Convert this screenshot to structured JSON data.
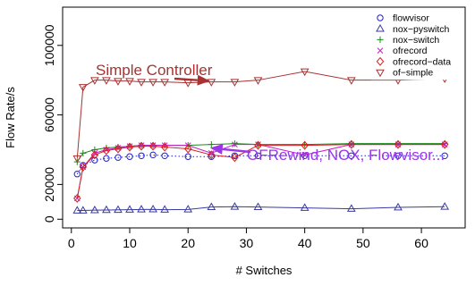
{
  "chart_data": {
    "type": "line",
    "xlabel": "# Switches",
    "ylabel": "Flow Rate/s",
    "xlim": [
      -1.5,
      67.5
    ],
    "ylim": [
      -5000,
      122000
    ],
    "x_ticks": [
      0,
      10,
      20,
      30,
      40,
      50,
      60
    ],
    "y_ticks": [
      0,
      20000,
      60000,
      100000
    ],
    "grid": false,
    "legend_position": "top-right",
    "series": [
      {
        "name": "flowvisor",
        "marker": "circle",
        "line": "dotted",
        "color": "#1f1fd6",
        "x": [
          1,
          2,
          4,
          6,
          8,
          10,
          12,
          14,
          16,
          20,
          24,
          28,
          32,
          40,
          48,
          56,
          64
        ],
        "y": [
          26000,
          31000,
          34000,
          35000,
          35500,
          36000,
          36500,
          37000,
          36500,
          36000,
          36000,
          36500,
          36500,
          36500,
          36500,
          36500,
          36500
        ]
      },
      {
        "name": "nox−pyswitch",
        "marker": "triangle-up",
        "line": "solid",
        "color": "#3a3aa0",
        "x": [
          1,
          2,
          4,
          6,
          8,
          10,
          12,
          14,
          16,
          20,
          24,
          28,
          32,
          40,
          48,
          56,
          64
        ],
        "y": [
          5000,
          5000,
          5200,
          5300,
          5400,
          5500,
          5600,
          5700,
          5500,
          5600,
          7000,
          7200,
          7000,
          6500,
          6000,
          6800,
          7200
        ]
      },
      {
        "name": "nox−switch",
        "marker": "plus",
        "line": "solid",
        "color": "#1a8a1a",
        "x": [
          1,
          2,
          4,
          6,
          8,
          10,
          12,
          14,
          16,
          20,
          24,
          28,
          32,
          40,
          48,
          56,
          64
        ],
        "y": [
          33000,
          38000,
          40000,
          41000,
          41500,
          42000,
          42500,
          42500,
          42500,
          42500,
          43000,
          43500,
          43000,
          43000,
          43500,
          43500,
          43500
        ]
      },
      {
        "name": "ofrecord",
        "marker": "x",
        "line": "solid",
        "color": "#c81ec8",
        "x": [
          1,
          2,
          4,
          6,
          8,
          10,
          12,
          14,
          16,
          20,
          24,
          28,
          32,
          40,
          48,
          56,
          64
        ],
        "y": [
          12000,
          30000,
          38000,
          40000,
          41000,
          42000,
          42500,
          42500,
          42500,
          42500,
          38000,
          43000,
          43000,
          37000,
          43000,
          43000,
          43000
        ]
      },
      {
        "name": "ofrecord−data",
        "marker": "diamond",
        "line": "solid",
        "color": "#d81c1c",
        "x": [
          1,
          2,
          4,
          6,
          8,
          10,
          12,
          14,
          16,
          20,
          24,
          28,
          32,
          40,
          48,
          56,
          64
        ],
        "y": [
          12000,
          30000,
          37000,
          39500,
          40500,
          41500,
          42000,
          42000,
          41500,
          40500,
          37000,
          35500,
          42500,
          42500,
          43000,
          43000,
          43000
        ]
      },
      {
        "name": "of−simple",
        "marker": "triangle-down",
        "line": "solid",
        "color": "#a83232",
        "x": [
          1,
          2,
          4,
          6,
          8,
          10,
          12,
          14,
          16,
          20,
          24,
          28,
          32,
          40,
          48,
          56,
          64
        ],
        "y": [
          35000,
          76000,
          80000,
          80000,
          79500,
          79500,
          79000,
          79000,
          79000,
          78500,
          79000,
          79000,
          80000,
          85000,
          80000,
          80000,
          81000
        ]
      }
    ],
    "annotations": [
      {
        "text": "Simple Controller",
        "color": "#a83232",
        "arrow_to": [
          23,
          78500
        ]
      },
      {
        "text": "OFRewind, NOX, Flowvisor...",
        "color": "#9a35e8",
        "arrow_to": [
          23,
          41000
        ]
      }
    ]
  }
}
